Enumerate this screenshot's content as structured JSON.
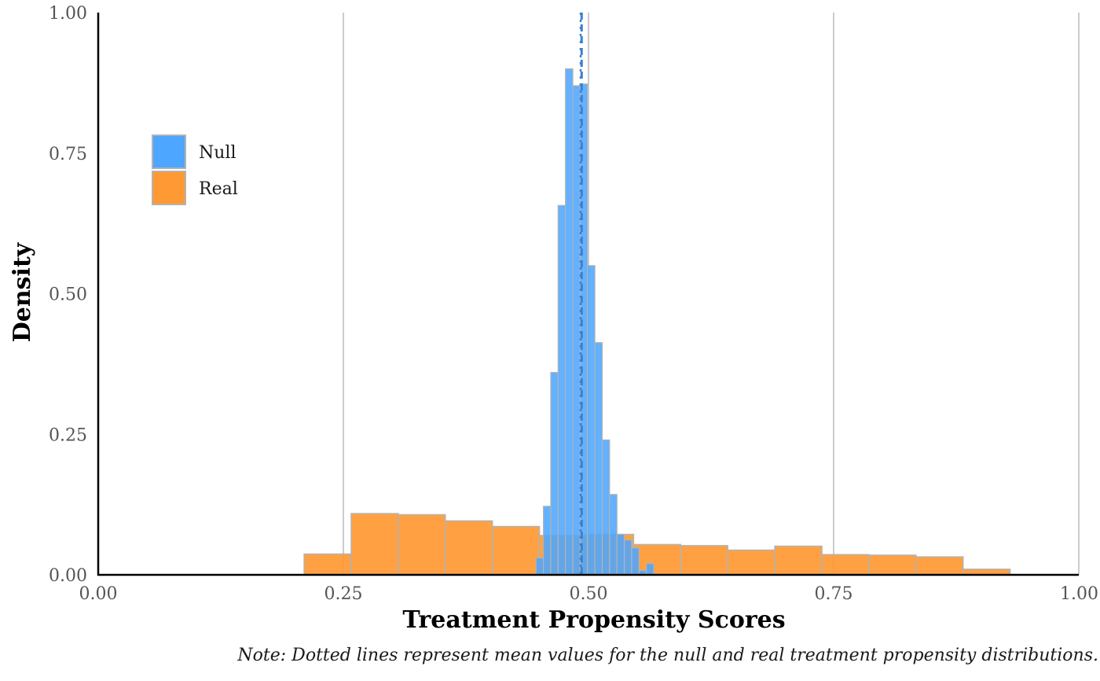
{
  "chart_data": {
    "type": "histogram",
    "xlabel": "Treatment Propensity Scores",
    "ylabel": "Density",
    "note": "Note: Dotted lines represent mean values for the null and real treatment propensity distributions.",
    "xlim": [
      0,
      1
    ],
    "ylim": [
      0,
      1
    ],
    "x_ticks": [
      "0.00",
      "0.25",
      "0.50",
      "0.75",
      "1.00"
    ],
    "y_ticks": [
      "0.00",
      "0.25",
      "0.50",
      "0.75",
      "1.00"
    ],
    "grid": "vertical major gridlines",
    "legend_position": "top-left",
    "colors": {
      "null": "#4da6ff",
      "real": "#ff9933",
      "mean_line": "#3a80d0",
      "bar_outline": "#b3b3b3"
    },
    "series": [
      {
        "name": "Real",
        "bins": [
          {
            "x0": 0.21,
            "x1": 0.258,
            "density": 0.037
          },
          {
            "x0": 0.258,
            "x1": 0.306,
            "density": 0.109
          },
          {
            "x0": 0.306,
            "x1": 0.354,
            "density": 0.107
          },
          {
            "x0": 0.354,
            "x1": 0.402,
            "density": 0.096
          },
          {
            "x0": 0.402,
            "x1": 0.45,
            "density": 0.086
          },
          {
            "x0": 0.45,
            "x1": 0.498,
            "density": 0.07
          },
          {
            "x0": 0.498,
            "x1": 0.546,
            "density": 0.072
          },
          {
            "x0": 0.546,
            "x1": 0.594,
            "density": 0.054
          },
          {
            "x0": 0.594,
            "x1": 0.642,
            "density": 0.052
          },
          {
            "x0": 0.642,
            "x1": 0.69,
            "density": 0.044
          },
          {
            "x0": 0.69,
            "x1": 0.738,
            "density": 0.051
          },
          {
            "x0": 0.738,
            "x1": 0.786,
            "density": 0.036
          },
          {
            "x0": 0.786,
            "x1": 0.834,
            "density": 0.035
          },
          {
            "x0": 0.834,
            "x1": 0.882,
            "density": 0.032
          },
          {
            "x0": 0.882,
            "x1": 0.93,
            "density": 0.01
          }
        ]
      },
      {
        "name": "Null",
        "bins": [
          {
            "x0": 0.4465,
            "x1": 0.454,
            "density": 0.03
          },
          {
            "x0": 0.454,
            "x1": 0.4615,
            "density": 0.122
          },
          {
            "x0": 0.4615,
            "x1": 0.469,
            "density": 0.36
          },
          {
            "x0": 0.469,
            "x1": 0.4765,
            "density": 0.657
          },
          {
            "x0": 0.4765,
            "x1": 0.484,
            "density": 0.9
          },
          {
            "x0": 0.484,
            "x1": 0.4915,
            "density": 0.87
          },
          {
            "x0": 0.4915,
            "x1": 0.499,
            "density": 0.873
          },
          {
            "x0": 0.499,
            "x1": 0.5065,
            "density": 0.55
          },
          {
            "x0": 0.5065,
            "x1": 0.514,
            "density": 0.413
          },
          {
            "x0": 0.514,
            "x1": 0.5215,
            "density": 0.24
          },
          {
            "x0": 0.5215,
            "x1": 0.529,
            "density": 0.143
          },
          {
            "x0": 0.529,
            "x1": 0.5365,
            "density": 0.072
          },
          {
            "x0": 0.5365,
            "x1": 0.544,
            "density": 0.062
          },
          {
            "x0": 0.544,
            "x1": 0.5515,
            "density": 0.048
          },
          {
            "x0": 0.5515,
            "x1": 0.559,
            "density": 0.008
          },
          {
            "x0": 0.559,
            "x1": 0.5665,
            "density": 0.02
          }
        ]
      }
    ],
    "means": {
      "null": 0.492,
      "real": 0.493
    }
  }
}
